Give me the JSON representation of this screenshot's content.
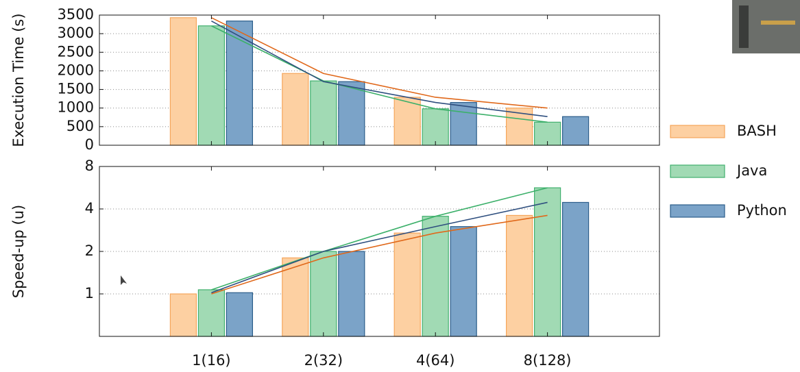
{
  "chart_data": [
    {
      "type": "bar",
      "y_label": "Execution Time (s)",
      "ylim": [
        0,
        3500
      ],
      "yticks": [
        0,
        500,
        1000,
        1500,
        2000,
        2500,
        3000,
        3500
      ],
      "grid": true,
      "series": [
        {
          "name": "BASH",
          "color": "#fdd0a2",
          "edge_color": "#f5a55a",
          "line_color": "#e0681a",
          "values": [
            3430,
            1930,
            1290,
            1000
          ]
        },
        {
          "name": "Java",
          "color": "#a1dab4",
          "edge_color": "#41b06e",
          "line_color": "#3cb06a",
          "values": [
            3210,
            1730,
            980,
            620
          ]
        },
        {
          "name": "Python",
          "color": "#7ba3c8",
          "edge_color": "#2b5d8a",
          "line_color": "#2f4f7f",
          "values": [
            3340,
            1710,
            1150,
            770
          ]
        }
      ]
    },
    {
      "type": "bar",
      "y_label": "Speed-up (u)",
      "log_scale": true,
      "ylim": [
        0.5,
        8
      ],
      "yticks": [
        1,
        2,
        4,
        8
      ],
      "grid": true,
      "categories": [
        "1(16)",
        "2(32)",
        "4(64)",
        "8(128)"
      ],
      "series": [
        {
          "color": "#fdd0a2",
          "edge_color": "#f5a55a",
          "line_color": "#e0681a",
          "values": [
            1,
            1.8,
            2.7,
            3.6
          ]
        },
        {
          "color": "#a1dab4",
          "edge_color": "#41b06e",
          "line_color": "#3cb06a",
          "values": [
            1.07,
            2,
            3.55,
            5.65
          ]
        },
        {
          "color": "#7ba3c8",
          "edge_color": "#2b5d8a",
          "line_color": "#2f4f7f",
          "values": [
            1.02,
            2,
            3,
            4.45
          ]
        }
      ]
    }
  ]
}
